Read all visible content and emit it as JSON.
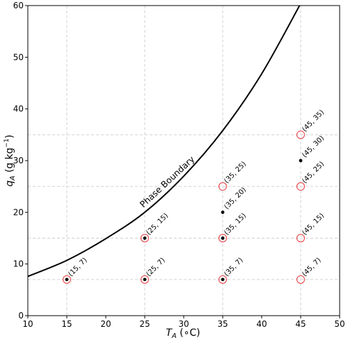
{
  "chart_data": {
    "type": "scatter",
    "xlabel_main": "T",
    "xlabel_sub": "A",
    "xlabel_unit": " (∘C)",
    "ylabel_main": "q",
    "ylabel_sub": "A",
    "ylabel_unit": " (g kg",
    "ylabel_exp": "−1",
    "ylabel_close": ")",
    "xlim": [
      10,
      50
    ],
    "ylim": [
      0,
      60
    ],
    "xticks": [
      10,
      15,
      20,
      25,
      30,
      35,
      40,
      45,
      50
    ],
    "yticks": [
      0,
      10,
      20,
      30,
      40,
      50,
      60
    ],
    "grid_x": [
      15,
      25,
      35,
      45
    ],
    "grid_y": [
      7,
      15,
      25,
      35
    ],
    "curve": {
      "label": "Phase Boundary",
      "label_anchor_x": 28.5,
      "points": [
        [
          10,
          7.6
        ],
        [
          15,
          10.7
        ],
        [
          20,
          14.9
        ],
        [
          25,
          20.0
        ],
        [
          30,
          27.0
        ],
        [
          35,
          35.8
        ],
        [
          40,
          46.8
        ],
        [
          45,
          60.4
        ]
      ]
    },
    "dots": [
      {
        "x": 15,
        "y": 7,
        "label": "(15, 7)",
        "circled": true
      },
      {
        "x": 25,
        "y": 7,
        "label": "(25, 7)",
        "circled": true
      },
      {
        "x": 35,
        "y": 7,
        "label": "(35, 7)",
        "circled": true
      },
      {
        "x": 25,
        "y": 15,
        "label": "(25, 15)",
        "circled": true
      },
      {
        "x": 35,
        "y": 15,
        "label": "(35, 15)",
        "circled": true
      },
      {
        "x": 35,
        "y": 20,
        "label": "(35, 20)",
        "circled": false
      },
      {
        "x": 45,
        "y": 30,
        "label": "(45, 30)",
        "circled": false
      }
    ],
    "rings": [
      {
        "x": 45,
        "y": 7,
        "label": "(45, 7)"
      },
      {
        "x": 45,
        "y": 15,
        "label": "(45, 15)"
      },
      {
        "x": 35,
        "y": 25,
        "label": "(35, 25)"
      },
      {
        "x": 45,
        "y": 25,
        "label": "(45, 25)"
      },
      {
        "x": 45,
        "y": 35,
        "label": "(45, 35)"
      }
    ],
    "colors": {
      "ring": "#e8393d",
      "dot": "#000000",
      "grid": "#d0d0d0",
      "curve": "#000000"
    }
  }
}
